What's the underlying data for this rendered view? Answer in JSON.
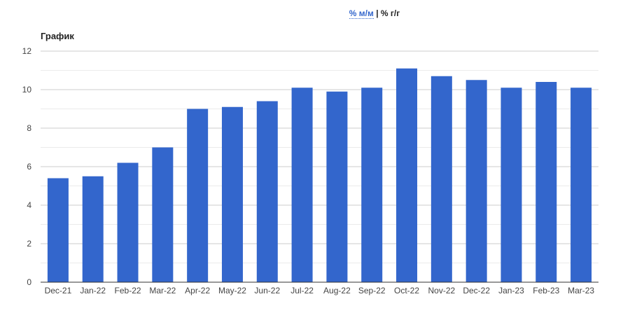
{
  "toggle": {
    "mm_label": "% м/м",
    "separator": "|",
    "yy_label": "% г/г"
  },
  "chart_data": {
    "type": "bar",
    "title": "График",
    "categories": [
      "Dec-21",
      "Jan-22",
      "Feb-22",
      "Mar-22",
      "Apr-22",
      "May-22",
      "Jun-22",
      "Jul-22",
      "Aug-22",
      "Sep-22",
      "Oct-22",
      "Nov-22",
      "Dec-22",
      "Jan-23",
      "Feb-23",
      "Mar-23"
    ],
    "values": [
      5.4,
      5.5,
      6.2,
      7.0,
      9.0,
      9.1,
      9.4,
      10.1,
      9.9,
      10.1,
      11.1,
      10.7,
      10.5,
      10.1,
      10.4,
      10.1
    ],
    "ylim": [
      0,
      12
    ],
    "yticks": [
      0,
      2,
      4,
      6,
      8,
      10,
      12
    ],
    "grid": true,
    "bar_color": "#3366cc"
  }
}
